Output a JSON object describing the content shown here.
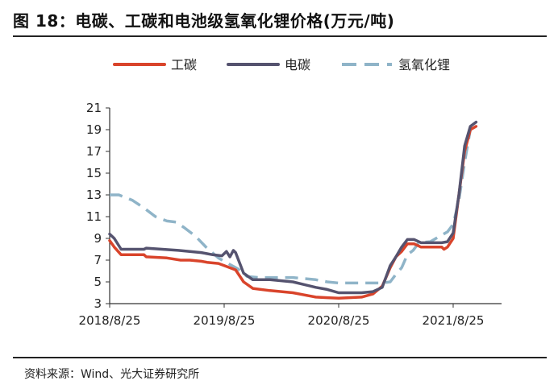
{
  "figure": {
    "title": "图 18：电碳、工碳和电池级氢氧化锂价格(万元/吨)",
    "source": "资料来源：Wind、光大证券研究所"
  },
  "colors": {
    "industrial_carbonate": "#d9442b",
    "battery_carbonate": "#55536f",
    "lithium_hydroxide": "#8fb4c8"
  },
  "chart_data": {
    "type": "line",
    "title": "电碳、工碳和电池级氢氧化锂价格(万元/吨)",
    "xlabel": "",
    "ylabel": "万元/吨",
    "xlim": [
      0,
      3.4
    ],
    "ylim": [
      3,
      21
    ],
    "yticks": [
      3,
      5,
      7,
      9,
      11,
      13,
      15,
      17,
      19,
      21
    ],
    "xticks": [
      {
        "value": 0,
        "label": "2018/8/25"
      },
      {
        "value": 1,
        "label": "2019/8/25"
      },
      {
        "value": 2,
        "label": "2020/8/25"
      },
      {
        "value": 3,
        "label": "2021/8/25"
      }
    ],
    "x_unit": "years since 2018/8/25",
    "series": [
      {
        "name": "工碳",
        "color": "#d9442b",
        "style": "solid",
        "x": [
          0,
          0.04,
          0.1,
          0.3,
          0.32,
          0.5,
          0.62,
          0.7,
          0.8,
          0.85,
          0.95,
          1.0,
          1.1,
          1.17,
          1.25,
          1.4,
          1.6,
          1.7,
          1.8,
          1.9,
          2.0,
          2.2,
          2.3,
          2.38,
          2.45,
          2.5,
          2.55,
          2.6,
          2.66,
          2.72,
          2.8,
          2.9,
          2.92,
          2.95,
          3.0,
          3.05,
          3.1,
          3.15,
          3.2
        ],
        "y": [
          8.8,
          8.2,
          7.5,
          7.5,
          7.3,
          7.2,
          7.0,
          7.0,
          6.9,
          6.8,
          6.7,
          6.5,
          6.1,
          5.0,
          4.4,
          4.2,
          4.0,
          3.8,
          3.6,
          3.55,
          3.5,
          3.6,
          3.9,
          4.6,
          6.3,
          7.3,
          7.8,
          8.5,
          8.5,
          8.2,
          8.2,
          8.2,
          8.0,
          8.2,
          9.0,
          13.0,
          17.0,
          19.0,
          19.3
        ]
      },
      {
        "name": "电碳",
        "color": "#55536f",
        "style": "solid",
        "x": [
          0,
          0.04,
          0.1,
          0.3,
          0.32,
          0.6,
          0.8,
          0.9,
          0.98,
          1.02,
          1.05,
          1.08,
          1.1,
          1.17,
          1.25,
          1.4,
          1.6,
          1.8,
          1.9,
          2.0,
          2.2,
          2.3,
          2.38,
          2.45,
          2.5,
          2.55,
          2.6,
          2.66,
          2.72,
          2.8,
          2.9,
          2.95,
          3.0,
          3.05,
          3.1,
          3.15,
          3.2
        ],
        "y": [
          9.4,
          9.0,
          8.0,
          8.0,
          8.1,
          7.9,
          7.7,
          7.5,
          7.4,
          7.8,
          7.3,
          7.9,
          7.7,
          5.8,
          5.2,
          5.2,
          5.0,
          4.5,
          4.3,
          4.0,
          4.0,
          4.1,
          4.5,
          6.5,
          7.3,
          8.2,
          8.9,
          8.9,
          8.6,
          8.6,
          8.6,
          8.7,
          9.5,
          13.0,
          17.5,
          19.3,
          19.7
        ]
      },
      {
        "name": "氢氧化锂",
        "color": "#8fb4c8",
        "style": "dashed",
        "x": [
          0,
          0.08,
          0.2,
          0.3,
          0.4,
          0.5,
          0.58,
          0.65,
          0.75,
          0.85,
          0.95,
          1.05,
          1.12,
          1.2,
          1.3,
          1.4,
          1.6,
          1.7,
          1.8,
          1.9,
          2.0,
          2.1,
          2.2,
          2.3,
          2.38,
          2.45,
          2.5,
          2.55,
          2.6,
          2.65,
          2.7,
          2.8,
          2.85,
          2.9,
          2.95,
          3.0,
          3.05,
          3.1,
          3.15,
          3.2
        ],
        "y": [
          13.0,
          13.0,
          12.5,
          11.8,
          11.0,
          10.6,
          10.5,
          10.0,
          9.2,
          8.1,
          7.2,
          6.6,
          6.2,
          5.5,
          5.4,
          5.4,
          5.4,
          5.3,
          5.2,
          5.0,
          4.9,
          4.9,
          4.9,
          4.9,
          4.9,
          5.0,
          5.7,
          6.3,
          7.5,
          7.9,
          8.6,
          8.7,
          9.0,
          9.3,
          9.6,
          10.3,
          12.5,
          16.0,
          19.0,
          19.8
        ]
      }
    ]
  }
}
